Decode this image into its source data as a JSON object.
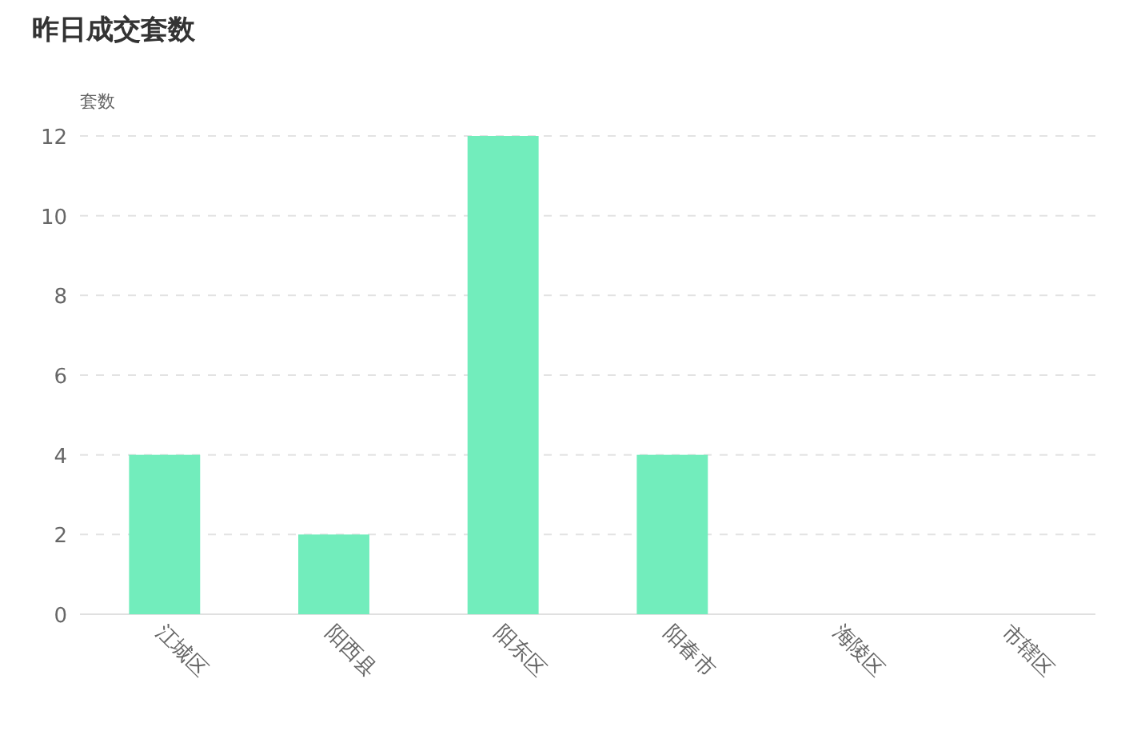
{
  "chart_data": {
    "type": "bar",
    "title": "昨日成交套数",
    "ylabel": "套数",
    "categories": [
      "江城区",
      "阳西县",
      "阳东区",
      "阳春市",
      "海陵区",
      "市辖区"
    ],
    "values": [
      4,
      2,
      12,
      4,
      0,
      0
    ],
    "color": "#72edbc",
    "ylim": [
      0,
      12
    ],
    "yticks": [
      0,
      2,
      4,
      6,
      8,
      10,
      12
    ],
    "grid": "y"
  }
}
